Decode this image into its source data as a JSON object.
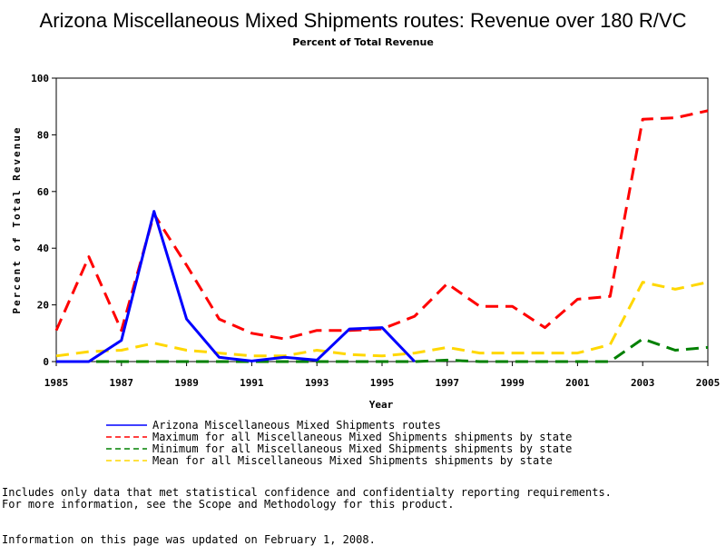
{
  "chart_data": {
    "type": "line",
    "title": "Arizona Miscellaneous Mixed Shipments routes: Revenue over 180 R/VC",
    "subtitle": "Percent of Total Revenue",
    "xlabel": "Year",
    "ylabel": "Percent of Total Revenue",
    "xlim": [
      1985,
      2005
    ],
    "ylim": [
      0,
      100
    ],
    "x_ticks": [
      "1985",
      "1987",
      "1989",
      "1991",
      "1993",
      "1995",
      "1997",
      "1999",
      "2001",
      "2003",
      "2005"
    ],
    "y_ticks": [
      "0",
      "20",
      "40",
      "60",
      "80",
      "100"
    ],
    "grid": false,
    "legend_position": "bottom",
    "series": [
      {
        "name": "Arizona Miscellaneous Mixed Shipments routes",
        "color": "#0000ff",
        "style": "solid",
        "points": [
          [
            1985,
            0
          ],
          [
            1986,
            0
          ],
          [
            1987,
            7.5
          ],
          [
            1988,
            53
          ],
          [
            1989,
            15
          ],
          [
            1990,
            1.5
          ],
          [
            1991,
            0.2
          ],
          [
            1992,
            1.5
          ],
          [
            1993,
            0.5
          ],
          [
            1994,
            11.5
          ],
          [
            1995,
            12
          ],
          [
            1996,
            0
          ]
        ]
      },
      {
        "name": "Maximum for all Miscellaneous Mixed Shipments shipments by state",
        "color": "#ff0000",
        "style": "dashed",
        "points": [
          [
            1985,
            11
          ],
          [
            1986,
            37
          ],
          [
            1987,
            11
          ],
          [
            1988,
            52
          ],
          [
            1989,
            34
          ],
          [
            1990,
            15
          ],
          [
            1991,
            10
          ],
          [
            1992,
            8
          ],
          [
            1993,
            11
          ],
          [
            1994,
            11
          ],
          [
            1995,
            11.5
          ],
          [
            1996,
            16
          ],
          [
            1997,
            27.5
          ],
          [
            1998,
            19.5
          ],
          [
            1999,
            19.5
          ],
          [
            2000,
            12
          ],
          [
            2001,
            22
          ],
          [
            2002,
            23
          ],
          [
            2003,
            85.5
          ],
          [
            2004,
            86
          ],
          [
            2005,
            88.5
          ]
        ]
      },
      {
        "name": "Minimum for all Miscellaneous Mixed Shipments shipments by state",
        "color": "#008000",
        "style": "dashed",
        "points": [
          [
            1985,
            0
          ],
          [
            1986,
            0
          ],
          [
            1987,
            0
          ],
          [
            1988,
            0
          ],
          [
            1989,
            0
          ],
          [
            1990,
            0
          ],
          [
            1991,
            0
          ],
          [
            1992,
            0
          ],
          [
            1993,
            0
          ],
          [
            1994,
            0
          ],
          [
            1995,
            0
          ],
          [
            1996,
            0
          ],
          [
            1997,
            0.5
          ],
          [
            1998,
            0
          ],
          [
            1999,
            0
          ],
          [
            2000,
            0
          ],
          [
            2001,
            0
          ],
          [
            2002,
            0
          ],
          [
            2003,
            8
          ],
          [
            2004,
            4
          ],
          [
            2005,
            5
          ]
        ]
      },
      {
        "name": "Mean for all Miscellaneous Mixed Shipments shipments by state",
        "color": "#ffd700",
        "style": "dashed",
        "points": [
          [
            1985,
            2
          ],
          [
            1986,
            3.5
          ],
          [
            1987,
            4
          ],
          [
            1988,
            6.5
          ],
          [
            1989,
            4
          ],
          [
            1990,
            3
          ],
          [
            1991,
            2
          ],
          [
            1992,
            2
          ],
          [
            1993,
            4
          ],
          [
            1994,
            2.5
          ],
          [
            1995,
            2
          ],
          [
            1996,
            3
          ],
          [
            1997,
            5
          ],
          [
            1998,
            3
          ],
          [
            1999,
            3
          ],
          [
            2000,
            3
          ],
          [
            2001,
            3
          ],
          [
            2002,
            6
          ],
          [
            2003,
            28
          ],
          [
            2004,
            25.5
          ],
          [
            2005,
            28
          ]
        ]
      }
    ]
  },
  "footnotes": {
    "line1": "Includes only data that met statistical confidence and confidentialty reporting requirements.",
    "line2": "For more information, see the Scope and Methodology for this product.",
    "updated": "Information on this page was updated on February 1, 2008."
  }
}
